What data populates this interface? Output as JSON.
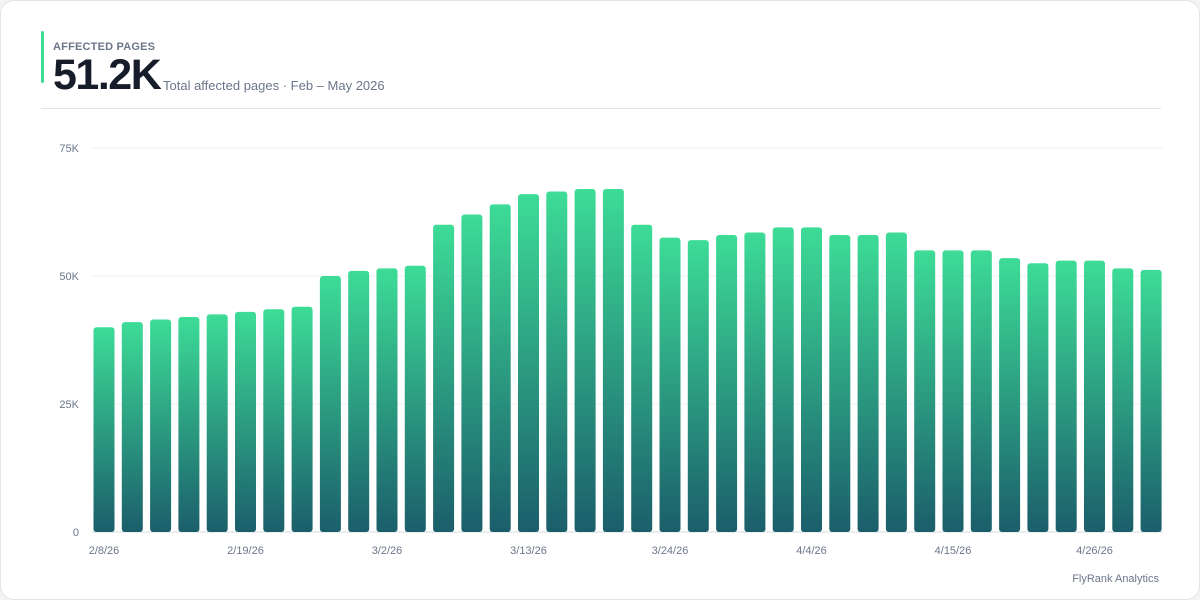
{
  "header": {
    "label": "AFFECTED PAGES",
    "value": "51.2K",
    "subtitle": "Total affected pages · Feb – May 2026"
  },
  "footer": {
    "brand": "FlyRank Analytics"
  },
  "colors": {
    "accent": "#3ddc97",
    "bar_top": "#3ddc97",
    "bar_bottom": "#1b5e6b"
  },
  "chart_data": {
    "type": "bar",
    "x_tick_labels": [
      "2/8/26",
      "2/19/26",
      "3/2/26",
      "3/13/26",
      "3/24/26",
      "4/4/26",
      "4/15/26",
      "4/26/26"
    ],
    "y_tick_labels": [
      "0",
      "25K",
      "50K",
      "75K"
    ],
    "ylim": [
      0,
      75000
    ],
    "grid": true,
    "values": [
      40000,
      41000,
      41500,
      42000,
      42500,
      43000,
      43500,
      44000,
      50000,
      51000,
      51500,
      52000,
      60000,
      62000,
      64000,
      66000,
      66500,
      67000,
      67000,
      60000,
      57500,
      57000,
      58000,
      58500,
      59500,
      59500,
      58000,
      58000,
      58500,
      55000,
      55000,
      55000,
      53500,
      52500,
      53000,
      53000,
      51500,
      51200
    ]
  }
}
